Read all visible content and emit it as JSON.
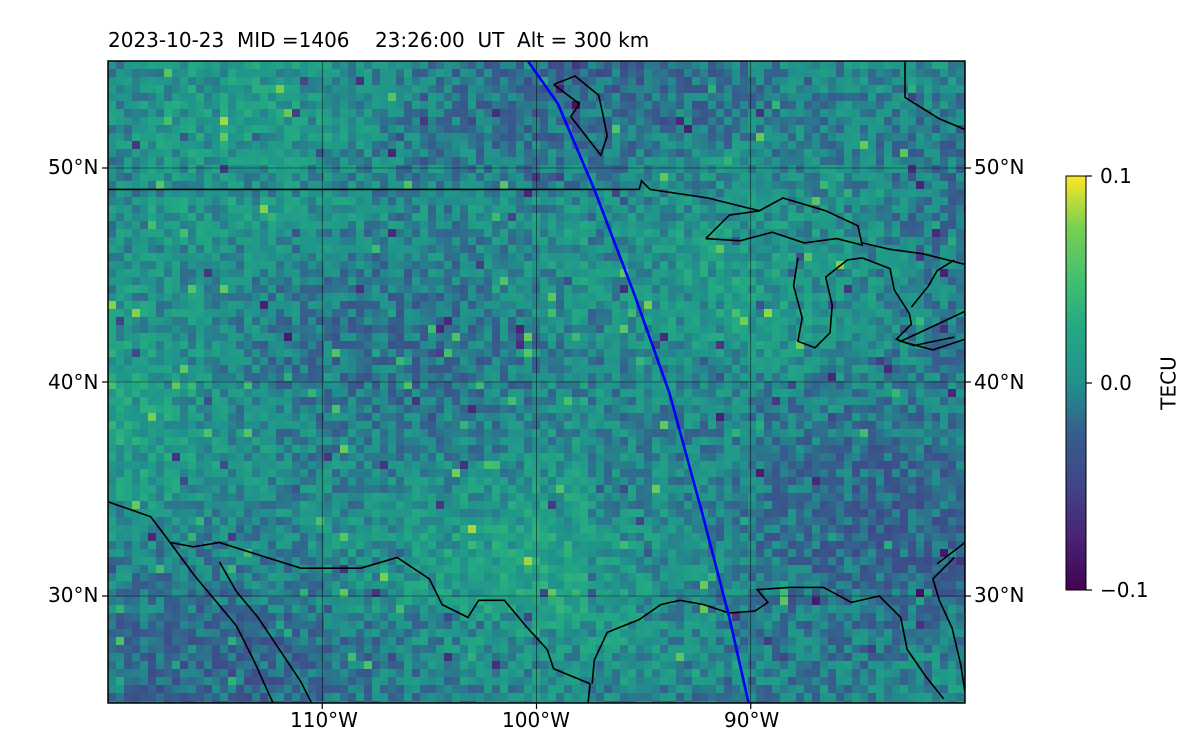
{
  "title": "2023-10-23  MID =1406    23:26:00  UT  Alt = 300 km",
  "map": {
    "projection": "plate carree",
    "lon_range": [
      -120,
      -80
    ],
    "lat_range": [
      25,
      55
    ],
    "gridlines": true,
    "lon_ticks": [
      {
        "value": -110,
        "label": "110°W"
      },
      {
        "value": -100,
        "label": "100°W"
      },
      {
        "value": -90,
        "label": "90°W"
      }
    ],
    "lat_ticks": [
      {
        "value": 30,
        "label": "30°N"
      },
      {
        "value": 40,
        "label": "40°N"
      },
      {
        "value": 50,
        "label": "50°N"
      }
    ],
    "colormap": "viridis",
    "colors": {
      "track": "#0000ff",
      "coastline": "#000000"
    },
    "blue_track": {
      "description_hidden": true,
      "points_lonlat": [
        [
          -100.4,
          55.0
        ],
        [
          -99.0,
          53.0
        ],
        [
          -97.3,
          49.0
        ],
        [
          -95.4,
          44.0
        ],
        [
          -93.8,
          39.5
        ],
        [
          -92.3,
          34.0
        ],
        [
          -91.0,
          29.0
        ],
        [
          -90.1,
          25.0
        ]
      ]
    }
  },
  "colorbar": {
    "label": "TECU",
    "min": -0.1,
    "max": 0.1,
    "ticks": [
      "0.1",
      "0.0",
      "−0.1"
    ]
  }
}
